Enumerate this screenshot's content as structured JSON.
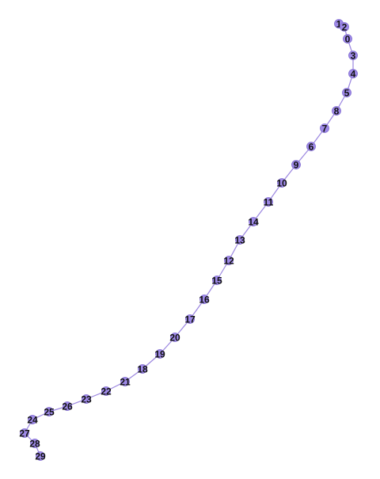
{
  "graph": {
    "node_color": "#9f8ae8",
    "edge_color": "#9b86e0",
    "label_color": "#111111",
    "nodes": [
      {
        "id": "0",
        "label": "0"
      },
      {
        "id": "1",
        "label": "1"
      },
      {
        "id": "2",
        "label": "2"
      },
      {
        "id": "3",
        "label": "3"
      },
      {
        "id": "4",
        "label": "4"
      },
      {
        "id": "5",
        "label": "5"
      },
      {
        "id": "6",
        "label": "6"
      },
      {
        "id": "7",
        "label": "7"
      },
      {
        "id": "8",
        "label": "8"
      },
      {
        "id": "9",
        "label": "9"
      },
      {
        "id": "10",
        "label": "10"
      },
      {
        "id": "11",
        "label": "11"
      },
      {
        "id": "12",
        "label": "12"
      },
      {
        "id": "13",
        "label": "13"
      },
      {
        "id": "14",
        "label": "14"
      },
      {
        "id": "15",
        "label": "15"
      },
      {
        "id": "16",
        "label": "16"
      },
      {
        "id": "17",
        "label": "17"
      },
      {
        "id": "18",
        "label": "18"
      },
      {
        "id": "19",
        "label": "19"
      },
      {
        "id": "20",
        "label": "20"
      },
      {
        "id": "21",
        "label": "21"
      },
      {
        "id": "22",
        "label": "22"
      },
      {
        "id": "23",
        "label": "23"
      },
      {
        "id": "24",
        "label": "24"
      },
      {
        "id": "25",
        "label": "25"
      },
      {
        "id": "26",
        "label": "26"
      },
      {
        "id": "27",
        "label": "27"
      },
      {
        "id": "28",
        "label": "28"
      },
      {
        "id": "29",
        "label": "29"
      }
    ],
    "edges": [
      [
        "1",
        "2"
      ],
      [
        "2",
        "0"
      ],
      [
        "0",
        "3"
      ],
      [
        "3",
        "4"
      ],
      [
        "4",
        "5"
      ],
      [
        "5",
        "8"
      ],
      [
        "8",
        "7"
      ],
      [
        "7",
        "6"
      ],
      [
        "6",
        "9"
      ],
      [
        "9",
        "10"
      ],
      [
        "10",
        "11"
      ],
      [
        "11",
        "14"
      ],
      [
        "14",
        "13"
      ],
      [
        "13",
        "12"
      ],
      [
        "12",
        "15"
      ],
      [
        "15",
        "16"
      ],
      [
        "16",
        "17"
      ],
      [
        "17",
        "20"
      ],
      [
        "20",
        "19"
      ],
      [
        "19",
        "18"
      ],
      [
        "18",
        "21"
      ],
      [
        "21",
        "22"
      ],
      [
        "22",
        "23"
      ],
      [
        "23",
        "26"
      ],
      [
        "26",
        "25"
      ],
      [
        "25",
        "24"
      ],
      [
        "24",
        "27"
      ],
      [
        "27",
        "28"
      ],
      [
        "28",
        "29"
      ]
    ]
  }
}
